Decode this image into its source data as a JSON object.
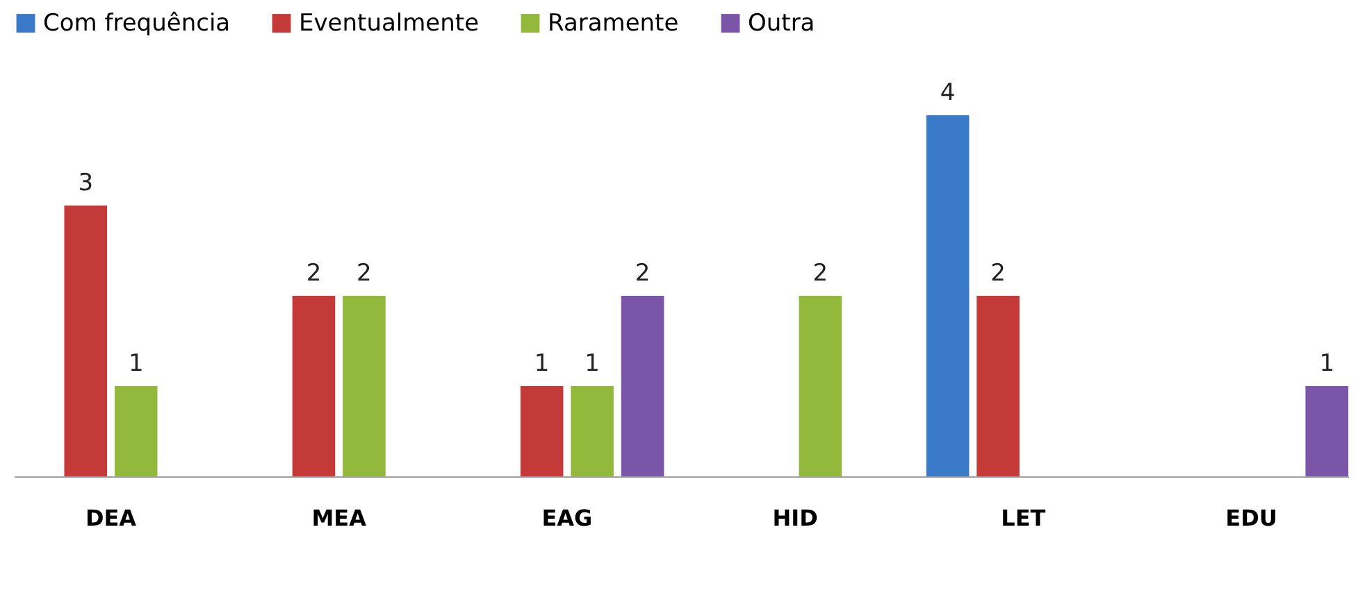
{
  "chart_data": {
    "type": "bar",
    "categories": [
      "DEA",
      "MEA",
      "EAG",
      "HID",
      "LET",
      "EDU"
    ],
    "series": [
      {
        "name": "Com frequência",
        "color": "#3a78c8",
        "values": [
          null,
          null,
          null,
          null,
          4,
          null
        ]
      },
      {
        "name": "Eventualmente",
        "color": "#c43a38",
        "values": [
          3,
          2,
          1,
          null,
          2,
          null
        ]
      },
      {
        "name": "Raramente",
        "color": "#92b83c",
        "values": [
          1,
          2,
          1,
          2,
          null,
          null
        ]
      },
      {
        "name": "Outra",
        "color": "#7a55a8",
        "values": [
          null,
          null,
          2,
          null,
          null,
          1
        ]
      }
    ],
    "data_labels": true,
    "legend": "top",
    "grid": false
  }
}
